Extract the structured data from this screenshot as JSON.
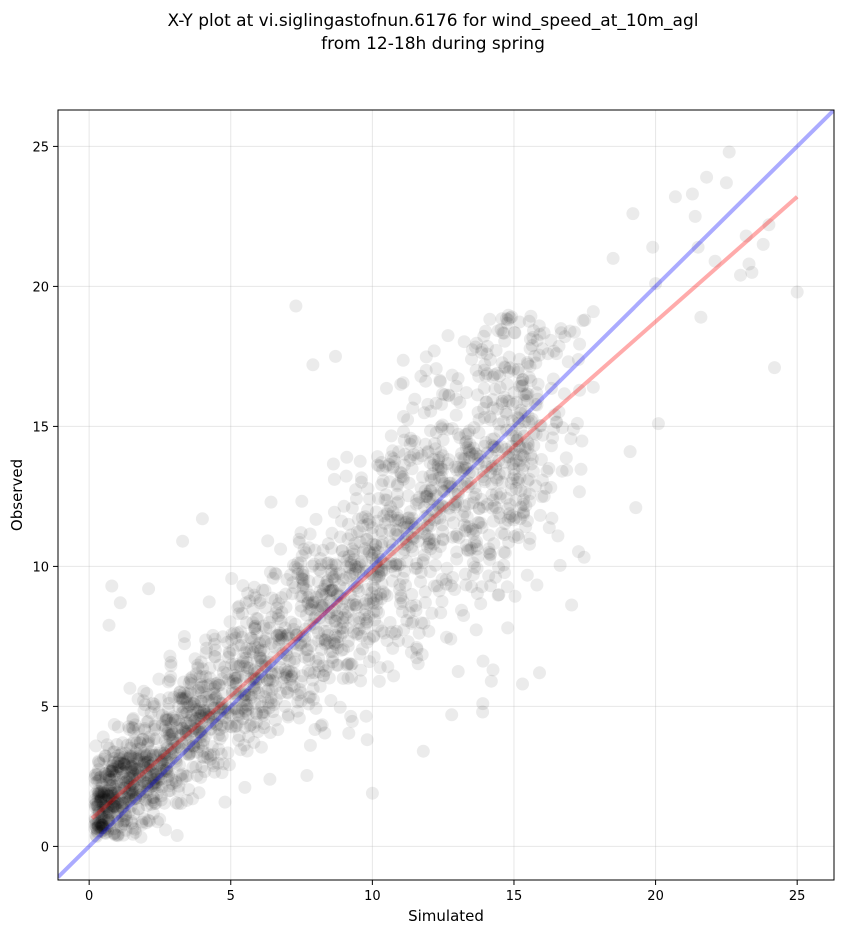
{
  "chart_data": {
    "type": "scatter",
    "title_lines": [
      "X-Y plot at vi.siglingastofnun.6176 for wind_speed_at_10m_agl",
      "from 12-18h during spring"
    ],
    "xlabel": "Simulated",
    "ylabel": "Observed",
    "xlim": [
      -1.1,
      26.3
    ],
    "ylim": [
      -1.2,
      26.3
    ],
    "xticks": [
      0,
      5,
      10,
      15,
      20,
      25
    ],
    "yticks": [
      0,
      5,
      10,
      15,
      20,
      25
    ],
    "grid": true,
    "point_color": "#000000",
    "point_alpha": 0.08,
    "identity_line": {
      "color": "#0000ff",
      "alpha": 0.33,
      "from": [
        -1.1,
        -1.1
      ],
      "to": [
        26.3,
        26.3
      ]
    },
    "fit_line": {
      "color": "#ff0000",
      "alpha": 0.33,
      "from": [
        0.1,
        1.0
      ],
      "to": [
        25.0,
        23.2
      ]
    },
    "notable_points": [
      [
        22.6,
        24.8
      ],
      [
        21.8,
        23.9
      ],
      [
        20.7,
        23.2
      ],
      [
        21.3,
        23.3
      ],
      [
        22.5,
        23.7
      ],
      [
        19.2,
        22.6
      ],
      [
        21.4,
        22.5
      ],
      [
        23.2,
        21.8
      ],
      [
        23.8,
        21.5
      ],
      [
        24.0,
        22.2
      ],
      [
        21.5,
        21.4
      ],
      [
        19.9,
        21.4
      ],
      [
        18.5,
        21.0
      ],
      [
        22.1,
        20.9
      ],
      [
        23.3,
        20.8
      ],
      [
        23.0,
        20.4
      ],
      [
        23.4,
        20.5
      ],
      [
        20.0,
        20.1
      ],
      [
        25.0,
        19.8
      ],
      [
        21.6,
        18.9
      ],
      [
        7.3,
        19.3
      ],
      [
        17.8,
        19.1
      ],
      [
        17.5,
        18.8
      ],
      [
        24.2,
        17.1
      ],
      [
        19.1,
        14.1
      ],
      [
        20.1,
        15.1
      ],
      [
        19.3,
        12.1
      ],
      [
        15.9,
        6.2
      ],
      [
        15.3,
        5.8
      ],
      [
        14.2,
        5.9
      ],
      [
        13.9,
        5.1
      ],
      [
        12.8,
        4.7
      ],
      [
        11.8,
        3.4
      ],
      [
        10.0,
        1.9
      ],
      [
        16.7,
        13.4
      ],
      [
        17.8,
        16.4
      ],
      [
        16.5,
        17.6
      ],
      [
        15.2,
        17.4
      ],
      [
        13.5,
        17.4
      ],
      [
        14.0,
        18.4
      ],
      [
        11.9,
        17.0
      ],
      [
        8.7,
        17.5
      ],
      [
        7.9,
        17.2
      ],
      [
        11.0,
        16.5
      ],
      [
        12.4,
        16.6
      ],
      [
        14.0,
        16.8
      ],
      [
        15.8,
        16.2
      ],
      [
        16.4,
        14.9
      ],
      [
        17.1,
        14.9
      ],
      [
        0.8,
        9.3
      ],
      [
        2.1,
        9.2
      ],
      [
        1.1,
        8.7
      ],
      [
        0.7,
        7.9
      ],
      [
        3.3,
        10.9
      ],
      [
        4.0,
        11.7
      ]
    ]
  }
}
